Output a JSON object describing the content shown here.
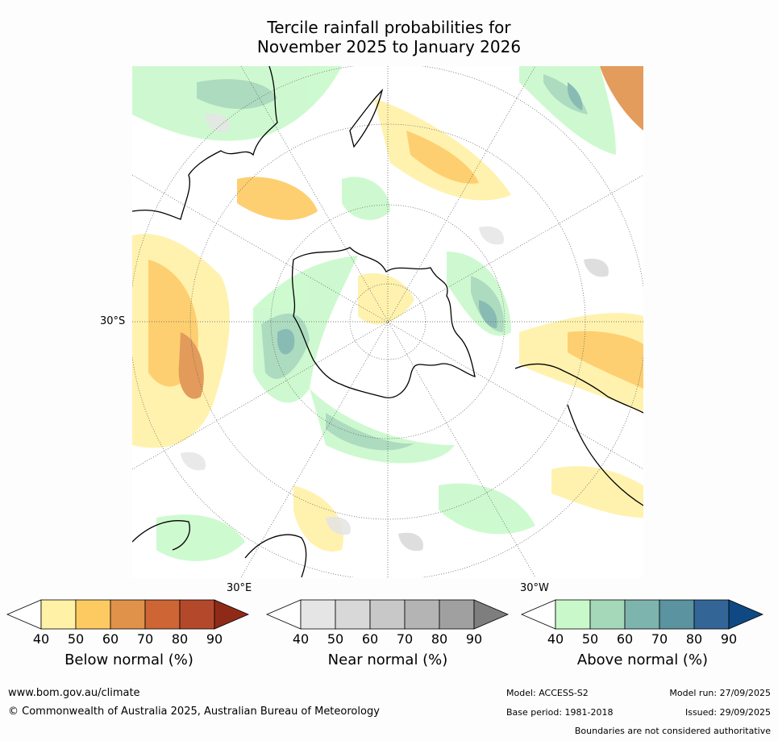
{
  "title": {
    "line1": "Tercile rainfall probabilities for",
    "line2": "November 2025 to January 2026"
  },
  "map": {
    "lat_label": "30°S",
    "lon_labels": {
      "east": "30°E",
      "west": "30°W"
    }
  },
  "legends": [
    {
      "id": "below",
      "title": "Below normal (%)",
      "ticks": [
        "40",
        "50",
        "60",
        "70",
        "80",
        "90"
      ],
      "colors": [
        "#fff1a6",
        "#fdca62",
        "#e0914a",
        "#cd6534",
        "#b3492a",
        "#902a18"
      ]
    },
    {
      "id": "near",
      "title": "Near normal (%)",
      "ticks": [
        "40",
        "50",
        "60",
        "70",
        "80",
        "90"
      ],
      "colors": [
        "#e5e5e5",
        "#d8d8d8",
        "#c8c8c8",
        "#b4b4b4",
        "#a0a0a0",
        "#7e7e7e"
      ]
    },
    {
      "id": "above",
      "title": "Above normal (%)",
      "ticks": [
        "40",
        "50",
        "60",
        "70",
        "80",
        "90"
      ],
      "colors": [
        "#c9f9cb",
        "#a5d8b9",
        "#7db4ad",
        "#5b93a0",
        "#336697",
        "#0f4984"
      ]
    }
  ],
  "footer": {
    "url": "www.bom.gov.au/climate",
    "copyright": "© Commonwealth of Australia 2025, Australian Bureau of Meteorology",
    "model": "Model: ACCESS-S2",
    "base_period": "Base period: 1981-2018",
    "model_run": "Model run: 27/09/2025",
    "issued": "Issued: 29/09/2025",
    "disclaimer": "Boundaries are not considered authoritative"
  },
  "colors": {
    "above_light": "#c9f9cb",
    "above_mid": "#a5d8b9",
    "above_dark": "#7db4ad",
    "below_light": "#fff1a6",
    "below_mid": "#fdca62",
    "below_dark": "#e0914a",
    "near_light": "#e5e5e5",
    "coast": "#000000"
  }
}
